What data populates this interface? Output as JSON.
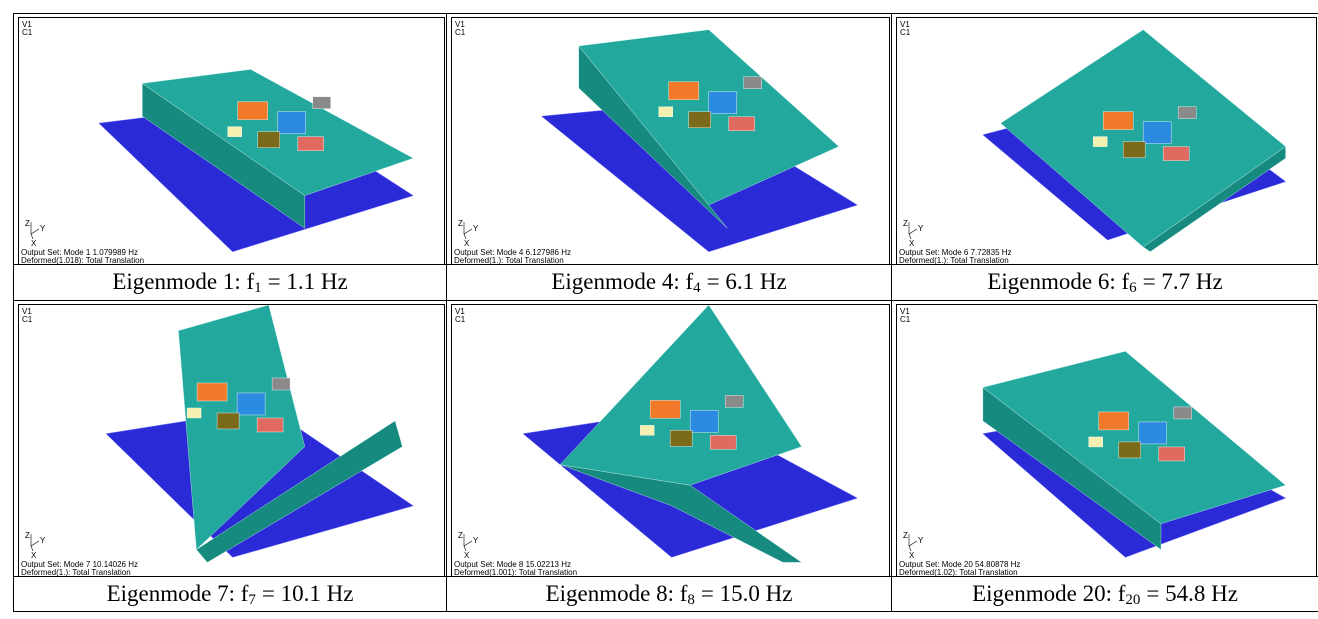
{
  "axis_labels": {
    "z": "Z",
    "y": "Y",
    "x": "X"
  },
  "panels": [
    {
      "view": "V1",
      "case": "C1",
      "output_set": "Output Set: Mode 1 1.079989 Hz",
      "deformed": "Deformed(1.018): Total Translation",
      "caption": {
        "text": "Eigenmode 1: f",
        "sub": "1",
        "rest": "= 1.1 Hz"
      }
    },
    {
      "view": "V1",
      "case": "C1",
      "output_set": "Output Set: Mode 4 6.127986 Hz",
      "deformed": "Deformed(1.): Total Translation",
      "caption": {
        "text": "Eigenmode 4: f",
        "sub": "4",
        "rest": "= 6.1 Hz"
      }
    },
    {
      "view": "V1",
      "case": "C1",
      "output_set": "Output Set: Mode 6 7.72835 Hz",
      "deformed": "Deformed(1.): Total Translation",
      "caption": {
        "text": "Eigenmode 6: f",
        "sub": "6",
        "rest": "= 7.7 Hz"
      }
    },
    {
      "view": "V1",
      "case": "C1",
      "output_set": "Output Set: Mode 7 10.14026 Hz",
      "deformed": "Deformed(1.): Total Translation",
      "caption": {
        "text": "Eigenmode 7: f",
        "sub": "7",
        "rest": "= 10.1 Hz"
      }
    },
    {
      "view": "V1",
      "case": "C1",
      "output_set": "Output Set: Mode 8 15.02213 Hz",
      "deformed": "Deformed(1.001): Total Translation",
      "caption": {
        "text": "Eigenmode 8: f",
        "sub": "8",
        "rest": "= 15.0 Hz"
      }
    },
    {
      "view": "V1",
      "case": "C1",
      "output_set": "Output Set: Mode 20 54.80878 Hz",
      "deformed": "Deformed(1.02): Total Translation",
      "caption": {
        "text": "Eigenmode 20: f",
        "sub": "20",
        "rest": "= 54.8 Hz"
      }
    }
  ]
}
